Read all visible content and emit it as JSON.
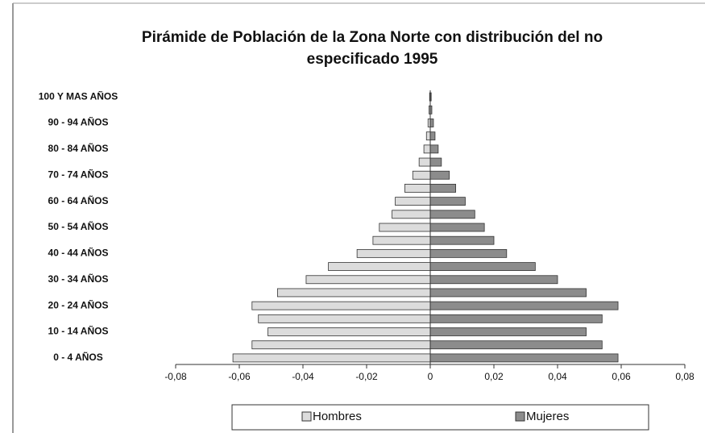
{
  "chart_data": {
    "type": "pyramid",
    "title": "Pirámide de Población de la Zona Norte con distribución del no especificado  1995",
    "categories": [
      "0 - 4 AÑOS",
      null,
      "10 - 14 AÑOS",
      null,
      "20 - 24 AÑOS",
      null,
      "30 - 34 AÑOS",
      null,
      "40 - 44 AÑOS",
      null,
      "50 - 54 AÑOS",
      null,
      "60 - 64 AÑOS",
      null,
      "70 - 74 AÑOS",
      null,
      "80 - 84 AÑOS",
      null,
      "90 - 94 AÑOS",
      null,
      "100 Y MAS AÑOS"
    ],
    "series": [
      {
        "name": "Hombres",
        "color": "#dcdcdc",
        "values": [
          -0.062,
          -0.056,
          -0.051,
          -0.054,
          -0.056,
          -0.048,
          -0.039,
          -0.032,
          -0.023,
          -0.018,
          -0.016,
          -0.012,
          -0.011,
          -0.008,
          -0.0055,
          -0.0035,
          -0.002,
          -0.0012,
          -0.0007,
          -0.0004,
          -0.0002
        ]
      },
      {
        "name": "Mujeres",
        "color": "#8c8c8c",
        "values": [
          0.059,
          0.054,
          0.049,
          0.054,
          0.059,
          0.049,
          0.04,
          0.033,
          0.024,
          0.02,
          0.017,
          0.014,
          0.011,
          0.008,
          0.006,
          0.0035,
          0.0025,
          0.0015,
          0.001,
          0.0005,
          0.0003
        ]
      }
    ],
    "xlim": [
      -0.08,
      0.08
    ],
    "xticks": [
      {
        "value": -0.08,
        "label": "-0,08"
      },
      {
        "value": -0.06,
        "label": "-0,06"
      },
      {
        "value": -0.04,
        "label": "-0,04"
      },
      {
        "value": -0.02,
        "label": "-0,02"
      },
      0,
      {
        "value": 0.02,
        "label": "0,02"
      },
      {
        "value": 0.04,
        "label": "0,04"
      },
      {
        "value": 0.06,
        "label": "0,06"
      },
      {
        "value": 0.08,
        "label": "0,08"
      }
    ],
    "legend": "bottom"
  }
}
